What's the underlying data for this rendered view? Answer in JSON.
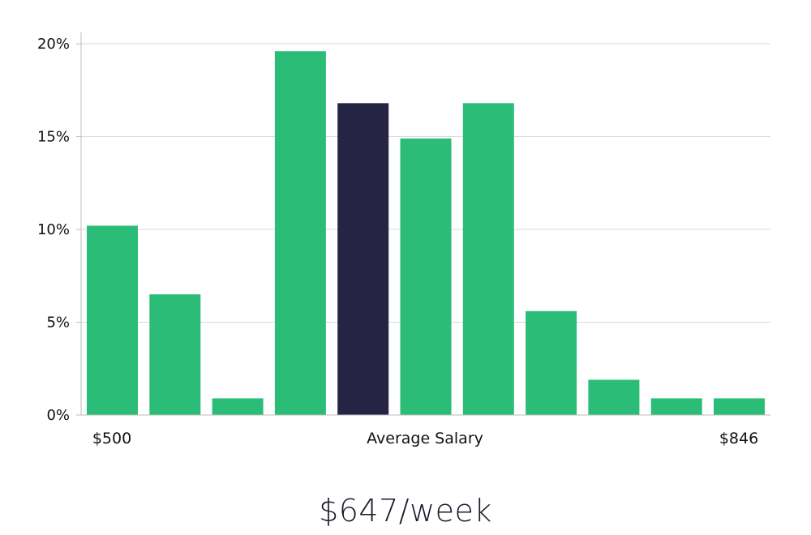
{
  "chart_data": {
    "type": "bar",
    "title": "",
    "xlabel": "Average Salary",
    "ylabel": "",
    "ylim": [
      0,
      20
    ],
    "y_ticks": [
      0,
      5,
      10,
      15,
      20
    ],
    "y_tick_labels": [
      "0%",
      "5%",
      "10%",
      "15%",
      "20%"
    ],
    "x_range_labels": {
      "min": "$500",
      "max": "$846"
    },
    "values": [
      10.2,
      6.5,
      0.9,
      19.6,
      16.8,
      14.9,
      16.8,
      5.6,
      1.9,
      0.9,
      0.9
    ],
    "highlight_index": 4,
    "grid": true,
    "colors": {
      "bar": "#2bbd77",
      "highlight": "#262444",
      "grid": "#d9d9d9",
      "axis": "#bdbdbd"
    }
  },
  "summary": {
    "average_label": "$647/week"
  }
}
